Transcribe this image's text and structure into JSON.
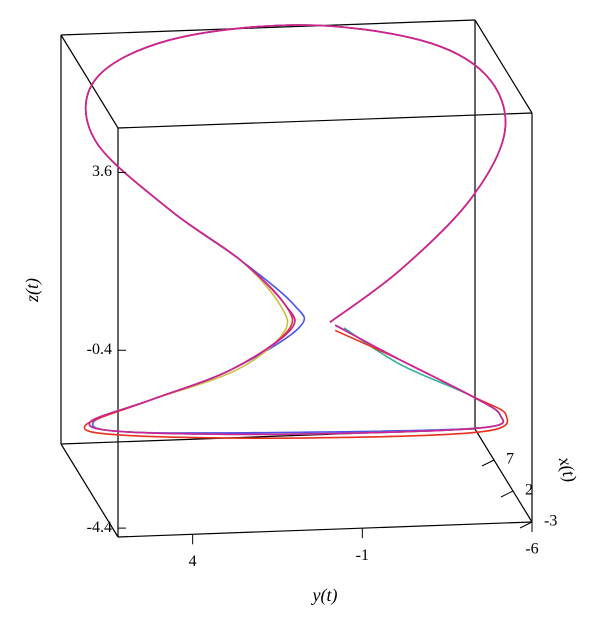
{
  "chart_data": {
    "type": "line3d",
    "xlabel": "x(t)",
    "ylabel": "y(t)",
    "zlabel": "z(t)",
    "xlim": [
      -3,
      12
    ],
    "ylim": [
      6.2,
      -6
    ],
    "zlim": [
      -4.6,
      4.6
    ],
    "xticks": [
      -3,
      2,
      7
    ],
    "yticks": [
      4,
      -1,
      -6
    ],
    "zticks": [
      3.6,
      -0.4,
      -4.4
    ],
    "series": [
      {
        "color": "#4a55e6",
        "x": [
          4.5,
          6,
          7.5,
          3.75,
          8.25,
          11.25,
          12,
          12,
          9,
          4.5,
          3,
          3,
          3,
          3,
          1.5,
          1.5,
          5.25,
          1.5,
          0,
          0,
          0.75,
          1.5,
          3,
          4.5
        ],
        "y": [
          -0.89,
          -3.12,
          -5.35,
          -5.96,
          -5.9,
          -4.3,
          -0.84,
          2.99,
          5.53,
          6.04,
          4.0,
          1.93,
          0.35,
          0.2,
          2.39,
          4.75,
          6.0,
          5.35,
          0.5,
          -4.8,
          -5.48,
          -4.68,
          -2.78,
          -1.04
        ],
        "z": [
          -1.01,
          -0.11,
          1.2,
          3.27,
          3.89,
          4.3,
          4.63,
          4.4,
          3.99,
          3.28,
          1.86,
          0.68,
          -0.37,
          -0.9,
          -1.58,
          -2.19,
          -3.17,
          -2.89,
          -2.82,
          -2.87,
          -2.7,
          -2.34,
          -1.7,
          -1.08
        ]
      },
      {
        "color": "#c8c040",
        "x": [
          4.5,
          6,
          7.5,
          3.75,
          8.25,
          11.25,
          12,
          12,
          9,
          4.5,
          3,
          3,
          3,
          3,
          1.5,
          1.5,
          5.25,
          1.5,
          0,
          0,
          0.75,
          1.5,
          3,
          4.5
        ],
        "y": [
          -0.89,
          -3.12,
          -5.35,
          -5.96,
          -5.9,
          -4.3,
          -0.84,
          2.99,
          5.53,
          6.04,
          4.0,
          1.93,
          0.75,
          0.65,
          2.2,
          4.75,
          6.1,
          5.35,
          0.5,
          -4.8,
          -5.48,
          -4.68,
          -2.78,
          -1.04
        ],
        "z": [
          -1.01,
          -0.11,
          1.2,
          3.27,
          3.89,
          4.3,
          4.63,
          4.4,
          3.99,
          3.28,
          1.86,
          0.68,
          -0.37,
          -1.0,
          -1.58,
          -2.19,
          -3.17,
          -2.89,
          -2.86,
          -2.87,
          -2.7,
          -2.34,
          -1.7,
          -1.08
        ]
      },
      {
        "color": "#30b098",
        "x": [
          4.5,
          6,
          7.5,
          3.75,
          8.25,
          11.25,
          12,
          12,
          9,
          4.5,
          3,
          3,
          3,
          3,
          1.5,
          1.5,
          5.25,
          1.5,
          0,
          0,
          0.75,
          1.5,
          3,
          4.5
        ],
        "y": [
          -0.89,
          -3.12,
          -5.35,
          -5.96,
          -5.9,
          -4.3,
          -0.84,
          2.99,
          5.53,
          6.04,
          4.0,
          1.93,
          0.6,
          0.45,
          2.39,
          4.75,
          6.1,
          5.35,
          0.5,
          -4.8,
          -5.48,
          -4.68,
          -2.78,
          -1.3
        ],
        "z": [
          -1.01,
          -0.11,
          1.2,
          3.27,
          3.89,
          4.3,
          4.63,
          4.4,
          3.99,
          3.28,
          1.86,
          0.68,
          -0.37,
          -0.94,
          -1.58,
          -2.19,
          -3.17,
          -2.89,
          -2.86,
          -2.87,
          -2.7,
          -2.34,
          -1.8,
          -1.15
        ]
      },
      {
        "color": "#e83020",
        "x": [
          4.5,
          6,
          7.5,
          3.75,
          8.25,
          11.25,
          12,
          12,
          9,
          4.5,
          3,
          3,
          3,
          3,
          1.5,
          1.5,
          5.25,
          1.5,
          0,
          0,
          0.75,
          1.5,
          3,
          4.5
        ],
        "y": [
          -0.89,
          -3.12,
          -5.35,
          -5.96,
          -5.9,
          -4.3,
          -0.84,
          2.99,
          5.53,
          6.04,
          4.0,
          1.93,
          0.6,
          0.55,
          2.39,
          4.75,
          6.25,
          5.35,
          0.5,
          -4.8,
          -5.65,
          -4.68,
          -2.78,
          -1.04
        ],
        "z": [
          -1.01,
          -0.11,
          1.2,
          3.27,
          3.89,
          4.3,
          4.63,
          4.4,
          3.99,
          3.28,
          1.86,
          0.68,
          -0.37,
          -0.98,
          -1.58,
          -2.19,
          -3.25,
          -2.97,
          -2.95,
          -2.96,
          -2.7,
          -2.34,
          -1.7,
          -1.2
        ]
      },
      {
        "color": "#d0209c",
        "x": [
          4.5,
          6,
          7.5,
          3.75,
          8.25,
          11.25,
          12,
          12,
          9,
          4.5,
          3,
          3,
          3,
          3,
          1.5,
          1.5,
          5.25,
          1.5,
          0,
          0,
          0.75,
          1.5,
          3,
          4.5
        ],
        "y": [
          -0.89,
          -3.12,
          -5.35,
          -5.96,
          -5.9,
          -4.3,
          -0.84,
          2.99,
          5.53,
          6.04,
          4.0,
          1.93,
          0.6,
          0.45,
          2.39,
          4.75,
          6.1,
          5.35,
          0.5,
          -4.8,
          -5.48,
          -4.68,
          -2.78,
          -1.04
        ],
        "z": [
          -1.01,
          -0.11,
          1.2,
          3.27,
          3.89,
          4.3,
          4.63,
          4.4,
          3.99,
          3.28,
          1.86,
          0.68,
          -0.37,
          -0.94,
          -1.58,
          -2.19,
          -3.17,
          -2.89,
          -2.86,
          -2.87,
          -2.7,
          -2.34,
          -1.7,
          -1.08
        ]
      }
    ]
  }
}
